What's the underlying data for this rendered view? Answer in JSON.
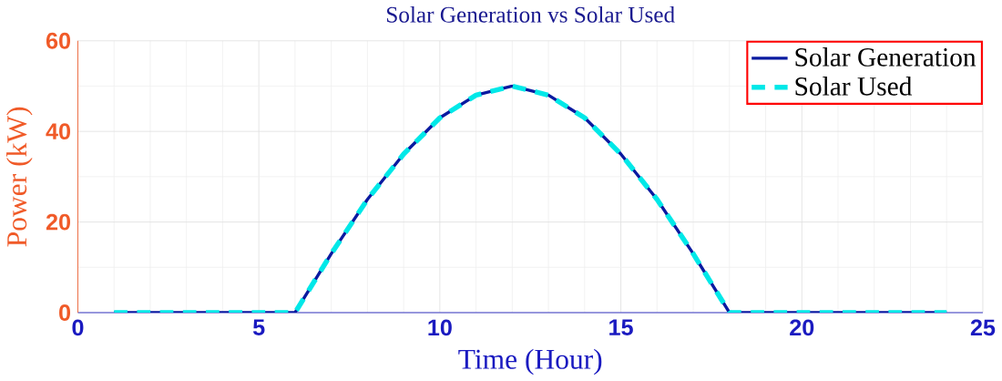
{
  "chart_data": {
    "type": "line",
    "title": "Solar Generation vs Solar Used",
    "xlabel": "Time (Hour)",
    "ylabel": "Power (kW)",
    "x": [
      1,
      2,
      3,
      4,
      5,
      6,
      7,
      8,
      9,
      10,
      11,
      12,
      13,
      14,
      15,
      16,
      17,
      18,
      19,
      20,
      21,
      22,
      23,
      24
    ],
    "series": [
      {
        "name": "Solar Generation",
        "color": "#0a1aa0",
        "line_style": "solid",
        "values": [
          0,
          0,
          0,
          0,
          0,
          0,
          13,
          25,
          35,
          43,
          48,
          50,
          48,
          43,
          35,
          25,
          13,
          0,
          0,
          0,
          0,
          0,
          0,
          0
        ]
      },
      {
        "name": "Solar Used",
        "color": "#00e8e8",
        "line_style": "dashed",
        "values": [
          0,
          0,
          0,
          0,
          0,
          0,
          13,
          25,
          35,
          43,
          48,
          50,
          48,
          43,
          35,
          25,
          13,
          0,
          0,
          0,
          0,
          0,
          0,
          0
        ]
      }
    ],
    "xlim": [
      0,
      25
    ],
    "ylim": [
      0,
      60
    ],
    "xticks": [
      0,
      5,
      10,
      15,
      20,
      25
    ],
    "yticks": [
      0,
      20,
      40,
      60
    ],
    "grid": true,
    "legend": "top right",
    "marker": "none"
  }
}
